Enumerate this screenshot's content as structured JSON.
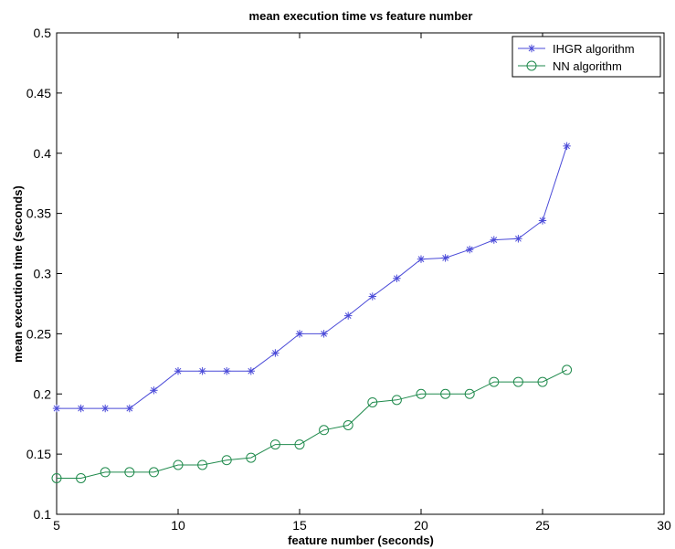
{
  "chart_data": {
    "type": "line",
    "title": "mean execution time vs feature number",
    "xlabel": "feature number (seconds)",
    "ylabel": "mean execution time (seconds)",
    "xlim": [
      5,
      30
    ],
    "ylim": [
      0.1,
      0.5
    ],
    "xticks": [
      "5",
      "10",
      "15",
      "20",
      "25",
      "30"
    ],
    "yticks": [
      "0.1",
      "0.15",
      "0.2",
      "0.25",
      "0.3",
      "0.35",
      "0.4",
      "0.45",
      "0.5"
    ],
    "grid": false,
    "legend_position": "top-right",
    "series": [
      {
        "name": "IHGR algorithm",
        "color": "#4a4ad8",
        "marker": "star",
        "x": [
          5,
          6,
          7,
          8,
          9,
          10,
          11,
          12,
          13,
          14,
          15,
          16,
          17,
          18,
          19,
          20,
          21,
          22,
          23,
          24,
          25,
          26
        ],
        "y": [
          0.188,
          0.188,
          0.188,
          0.188,
          0.203,
          0.219,
          0.219,
          0.219,
          0.219,
          0.234,
          0.25,
          0.25,
          0.265,
          0.281,
          0.296,
          0.312,
          0.313,
          0.32,
          0.328,
          0.329,
          0.344,
          0.406
        ]
      },
      {
        "name": "NN algorithm",
        "color": "#1f8a4c",
        "marker": "circle",
        "x": [
          5,
          6,
          7,
          8,
          9,
          10,
          11,
          12,
          13,
          14,
          15,
          16,
          17,
          18,
          19,
          20,
          21,
          22,
          23,
          24,
          25,
          26
        ],
        "y": [
          0.13,
          0.13,
          0.135,
          0.135,
          0.135,
          0.141,
          0.141,
          0.145,
          0.147,
          0.158,
          0.158,
          0.17,
          0.174,
          0.193,
          0.195,
          0.2,
          0.2,
          0.2,
          0.21,
          0.21,
          0.21,
          0.22
        ]
      }
    ]
  }
}
